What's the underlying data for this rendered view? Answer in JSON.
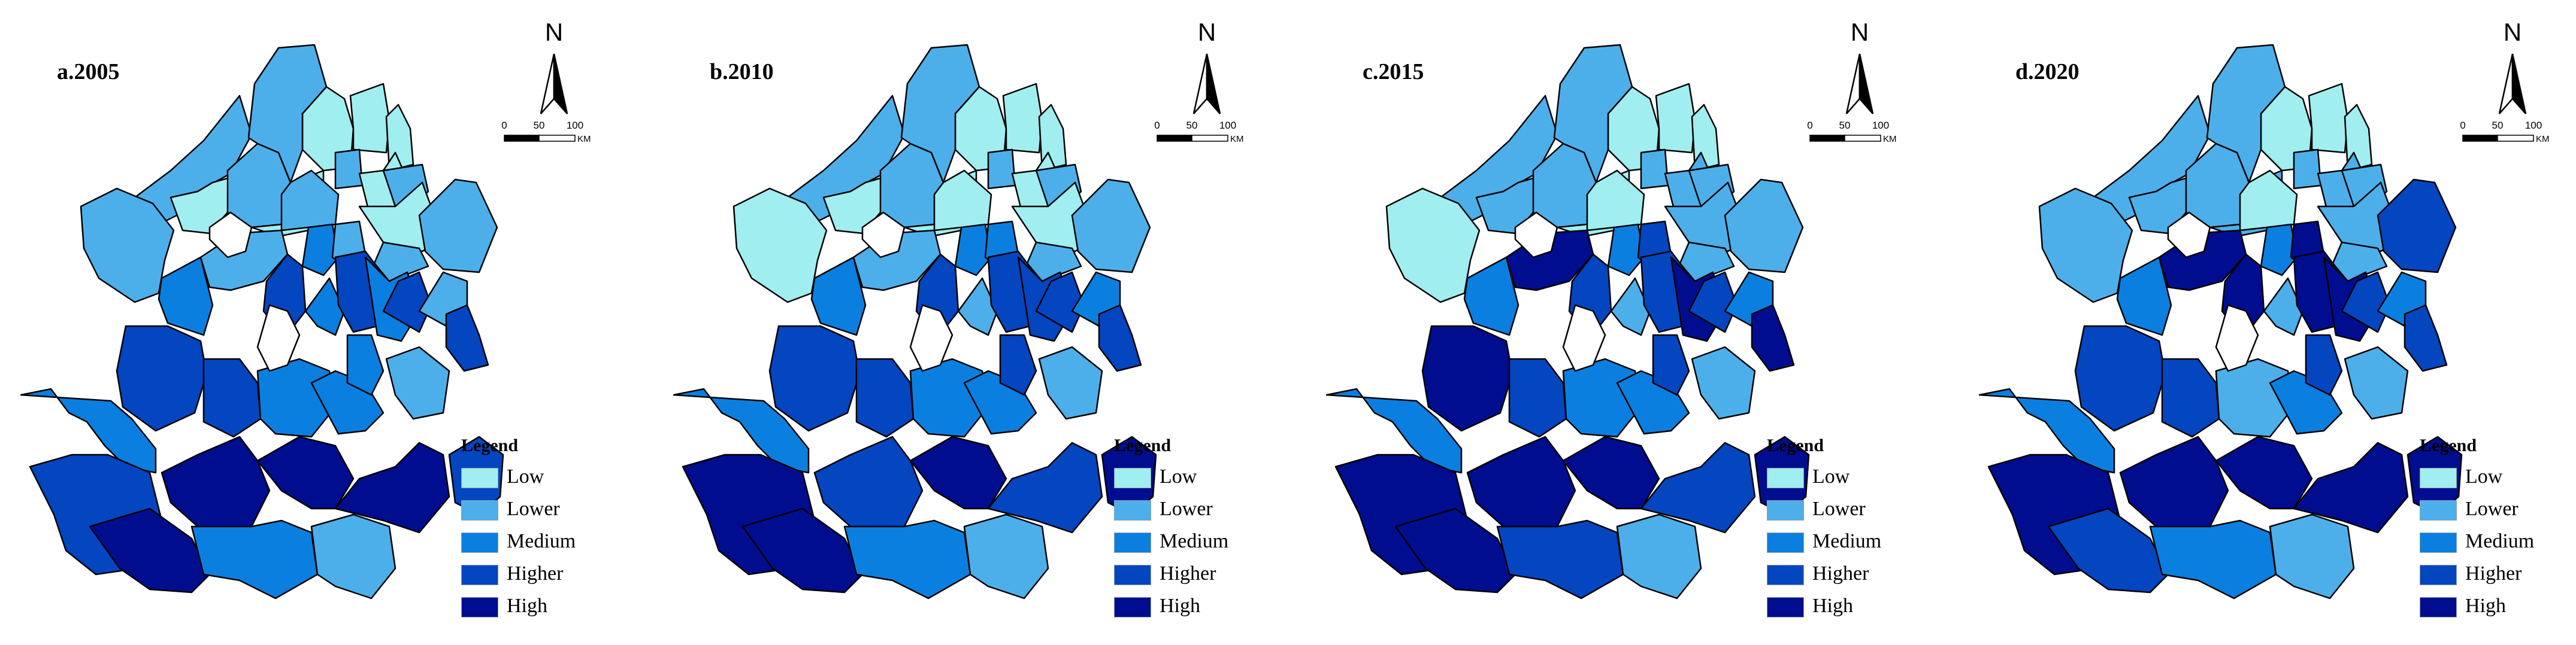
{
  "legend": {
    "title": "Legend",
    "classes": [
      {
        "label": "Low",
        "color": "#a0eeef"
      },
      {
        "label": "Lower",
        "color": "#4dafea"
      },
      {
        "label": "Medium",
        "color": "#0b7fe0"
      },
      {
        "label": "Higher",
        "color": "#0445c0"
      },
      {
        "label": "High",
        "color": "#010d8f"
      }
    ]
  },
  "north_arrow": {
    "label": "N",
    "icon": "north-arrow-icon"
  },
  "scale_bar": {
    "ticks": [
      "0",
      "50",
      "100"
    ],
    "unit": "KM"
  },
  "panels": [
    {
      "title": "a.2005",
      "classes": [
        1,
        1,
        0,
        1,
        0,
        0,
        0,
        1,
        0,
        1,
        1,
        0,
        1,
        2,
        1,
        0,
        1,
        1,
        2,
        1,
        3,
        2,
        3,
        2,
        3,
        1,
        3,
        3,
        3,
        2,
        2,
        2,
        1,
        2,
        3,
        4,
        4,
        4,
        3,
        4,
        2,
        1
      ]
    },
    {
      "title": "b.2010",
      "classes": [
        1,
        0,
        0,
        1,
        0,
        0,
        0,
        1,
        0,
        0,
        1,
        0,
        1,
        2,
        2,
        0,
        1,
        1,
        2,
        1,
        3,
        1,
        3,
        3,
        3,
        2,
        3,
        3,
        3,
        2,
        2,
        3,
        1,
        2,
        4,
        3,
        4,
        3,
        4,
        4,
        2,
        1
      ]
    },
    {
      "title": "c.2015",
      "classes": [
        1,
        0,
        1,
        1,
        0,
        0,
        0,
        1,
        0,
        0,
        1,
        1,
        1,
        2,
        3,
        1,
        1,
        1,
        2,
        4,
        3,
        1,
        3,
        4,
        3,
        2,
        4,
        4,
        3,
        2,
        2,
        3,
        1,
        2,
        4,
        4,
        4,
        3,
        4,
        4,
        3,
        1
      ]
    },
    {
      "title": "d.2020",
      "classes": [
        1,
        1,
        1,
        1,
        0,
        0,
        0,
        1,
        1,
        0,
        1,
        1,
        1,
        2,
        4,
        1,
        3,
        1,
        2,
        4,
        4,
        1,
        4,
        4,
        3,
        2,
        3,
        3,
        3,
        1,
        2,
        3,
        1,
        2,
        4,
        4,
        4,
        4,
        4,
        3,
        2,
        1
      ]
    }
  ]
}
